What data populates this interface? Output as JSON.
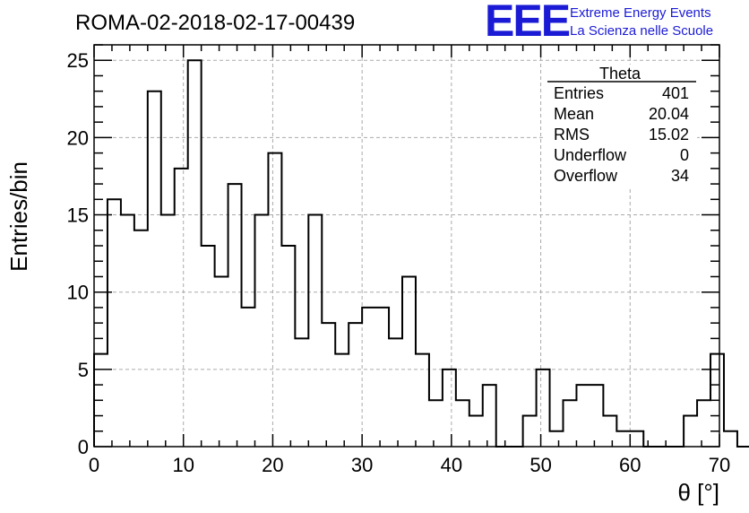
{
  "chart_data": {
    "type": "bar",
    "title": "ROMA-02-2018-02-17-00439",
    "xlabel": "θ [°]",
    "ylabel": "Entries/bin",
    "xlim": [
      0,
      70
    ],
    "ylim": [
      0,
      26
    ],
    "x_ticks": [
      "0",
      "10",
      "20",
      "30",
      "40",
      "50",
      "60",
      "70"
    ],
    "y_ticks": [
      "0",
      "5",
      "10",
      "15",
      "20",
      "25"
    ],
    "grid": true,
    "bin_edges_start": 0,
    "bin_width": 1.5,
    "values": [
      6,
      16,
      15,
      14,
      23,
      15,
      18,
      25,
      13,
      11,
      17,
      9,
      15,
      19,
      13,
      7,
      15,
      8,
      6,
      8,
      9,
      9,
      7,
      11,
      6,
      3,
      5,
      3,
      2,
      4,
      0,
      0,
      2,
      5,
      1,
      3,
      4,
      4,
      2,
      1,
      1,
      0,
      0,
      0,
      2,
      3,
      6,
      1,
      0
    ],
    "stats_box": {
      "name": "Theta",
      "rows": [
        {
          "label": "Entries",
          "value": "401"
        },
        {
          "label": "Mean",
          "value": "20.04"
        },
        {
          "label": "RMS",
          "value": "15.02"
        },
        {
          "label": "Underflow",
          "value": "0"
        },
        {
          "label": "Overflow",
          "value": "34"
        }
      ]
    }
  },
  "logo": {
    "mark": "EEE",
    "line1": "Extreme Energy Events",
    "line2": "La Scienza nelle Scuole"
  },
  "colors": {
    "logo": "#1b1bd6",
    "histogram": "#000000",
    "grid": "#aaaaaa"
  }
}
